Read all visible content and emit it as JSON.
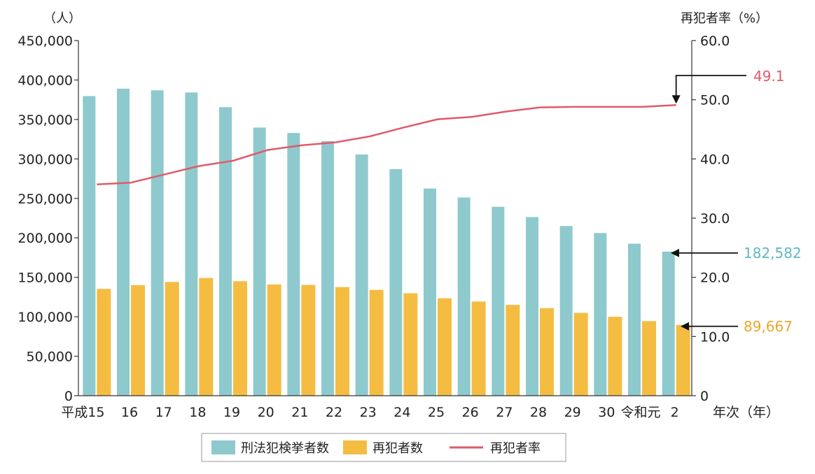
{
  "chart_data": {
    "type": "bar",
    "categories": [
      "平成15",
      "16",
      "17",
      "18",
      "19",
      "20",
      "21",
      "22",
      "23",
      "24",
      "25",
      "26",
      "27",
      "28",
      "29",
      "30",
      "令和元",
      "2"
    ],
    "xlabel": "年次（年）",
    "ylabel_left": "（人）",
    "ylabel_right": "再犯者率（%）",
    "ylim_left": [
      0,
      450000
    ],
    "ylim_right": [
      0,
      60
    ],
    "yticks_left": [
      "0",
      "50,000",
      "100,000",
      "150,000",
      "200,000",
      "250,000",
      "300,000",
      "350,000",
      "400,000",
      "450,000"
    ],
    "yticks_right": [
      "0",
      "10.0",
      "20.0",
      "30.0",
      "40.0",
      "50.0",
      "60.0"
    ],
    "grid": false,
    "legend_position": "bottom",
    "series": [
      {
        "name": "刑法犯検挙者数",
        "type": "bar",
        "axis": "left",
        "color": "#8ec9cd",
        "values": [
          379602,
          389027,
          386955,
          384250,
          365577,
          339752,
          332888,
          322620,
          305631,
          287021,
          262486,
          251115,
          239355,
          226376,
          215003,
          206094,
          192607,
          182582
        ]
      },
      {
        "name": "再犯者数",
        "type": "bar",
        "axis": "left",
        "color": "#f4bd42",
        "values": [
          135295,
          140054,
          144099,
          149164,
          145052,
          140939,
          140406,
          137614,
          134050,
          129800,
          123510,
          119300,
          115000,
          111000,
          105000,
          100000,
          94500,
          89667
        ]
      },
      {
        "name": "再犯者率",
        "type": "line",
        "axis": "right",
        "color": "#e05a6a",
        "values": [
          35.7,
          36.0,
          37.4,
          38.8,
          39.7,
          41.5,
          42.3,
          42.8,
          43.8,
          45.3,
          46.7,
          47.1,
          48.0,
          48.7,
          48.8,
          48.8,
          48.8,
          49.1
        ]
      }
    ],
    "annotations": [
      {
        "text": "49.1",
        "series": "再犯者率",
        "color": "#e05a6a"
      },
      {
        "text": "182,582",
        "series": "刑法犯検挙者数",
        "color": "#5fb8c0"
      },
      {
        "text": "89,667",
        "series": "再犯者数",
        "color": "#e8a82a"
      }
    ]
  }
}
